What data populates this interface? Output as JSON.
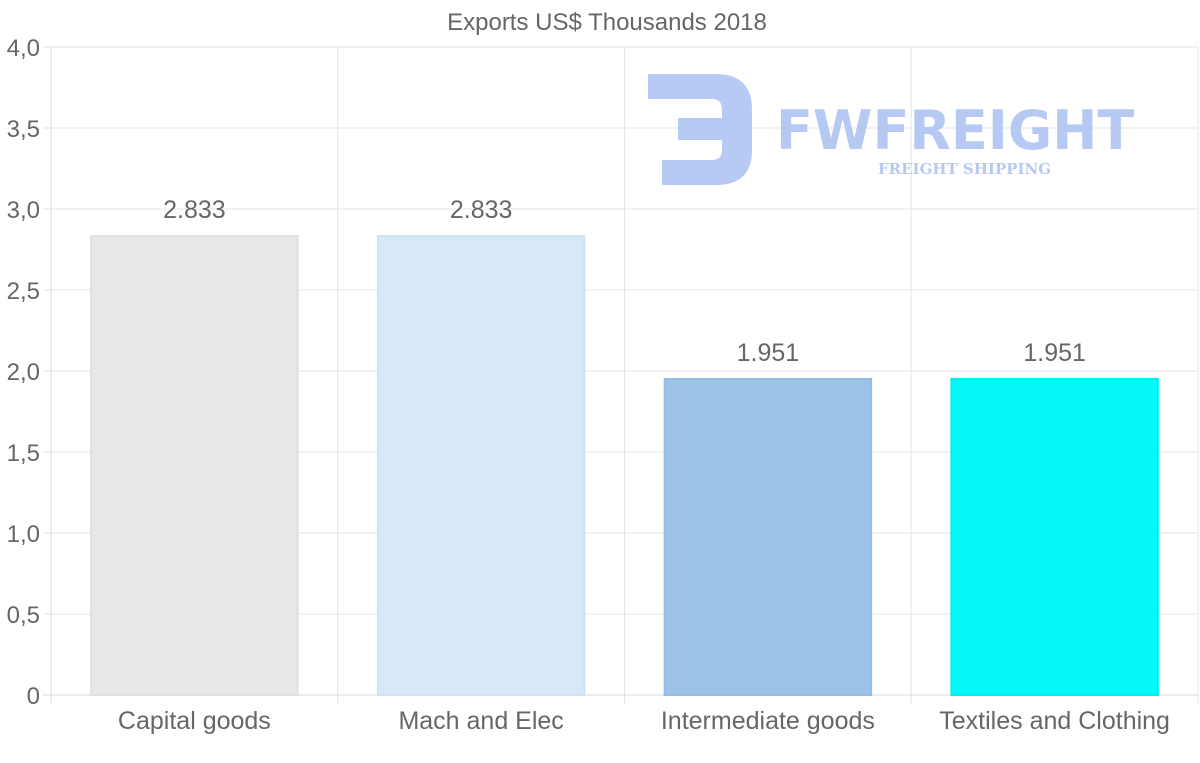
{
  "chart_data": {
    "type": "bar",
    "title": "Exports US$ Thousands 2018",
    "categories": [
      "Capital goods",
      "Mach and Elec",
      "Intermediate goods",
      "Textiles and Clothing"
    ],
    "values": [
      2.833,
      2.833,
      1.951,
      1.951
    ],
    "data_labels": [
      "2.833",
      "2.833",
      "1.951",
      "1.951"
    ],
    "bar_colors": [
      "#e8e8e8",
      "#d8e8f9",
      "#9cc3e6",
      "#05f7f7"
    ],
    "bar_border_colors": [
      "#e0e0e0",
      "#cfe1f6",
      "#94bde3",
      "#00eef2"
    ],
    "ylim": [
      0,
      4.0
    ],
    "yticks": [
      {
        "value": 0,
        "label": "0"
      },
      {
        "value": 0.5,
        "label": "0,5"
      },
      {
        "value": 1.0,
        "label": "1,0"
      },
      {
        "value": 1.5,
        "label": "1,5"
      },
      {
        "value": 2.0,
        "label": "2,0"
      },
      {
        "value": 2.5,
        "label": "2,5"
      },
      {
        "value": 3.0,
        "label": "3,0"
      },
      {
        "value": 3.5,
        "label": "3,5"
      },
      {
        "value": 4.0,
        "label": "4,0"
      }
    ],
    "xlabel": "",
    "ylabel": "",
    "grid": true,
    "legend": "none"
  },
  "watermark": {
    "name": "FWFREIGHT",
    "tagline": "FREIGHT SHIPPING",
    "color": "#b3c7f2"
  }
}
